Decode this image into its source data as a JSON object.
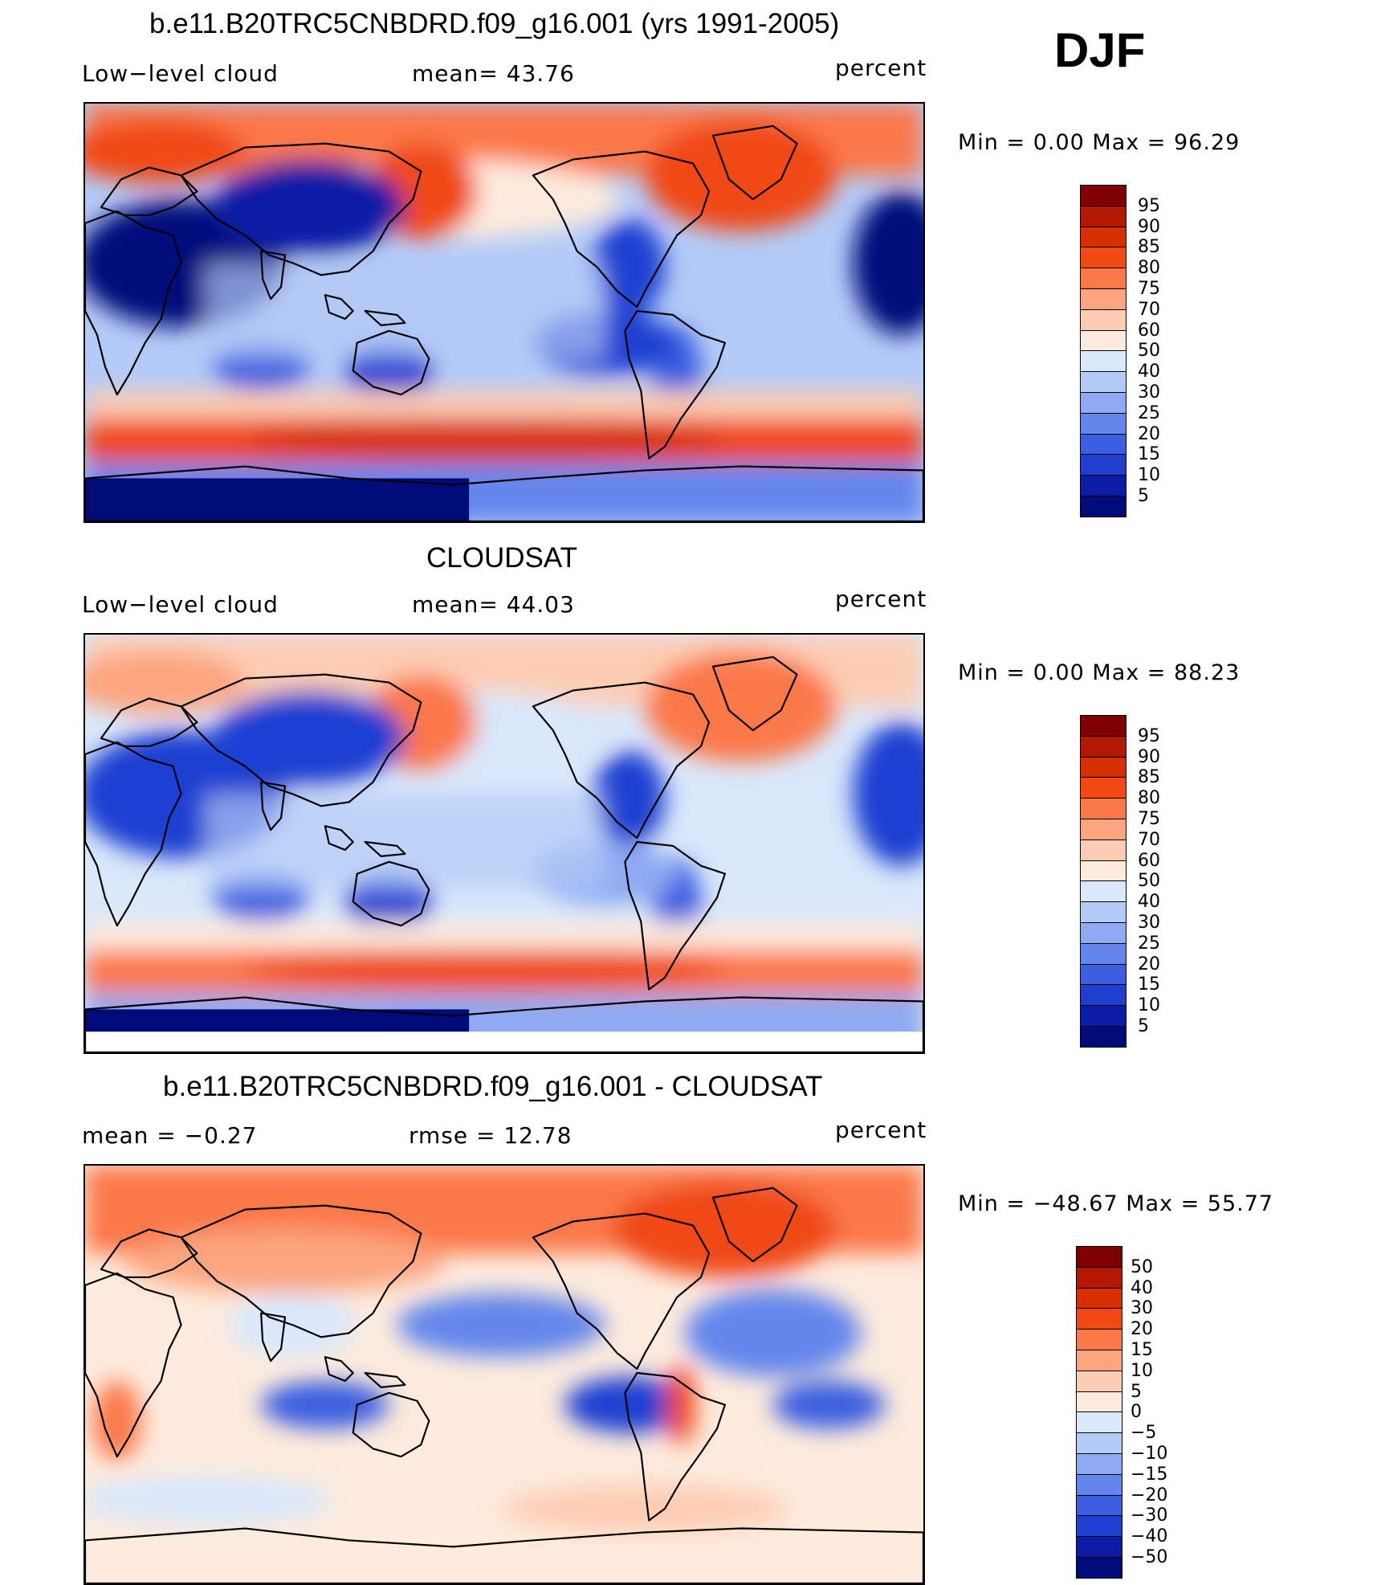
{
  "season": "DJF",
  "panels": [
    {
      "title": "b.e11.B20TRC5CNBDRD.f09_g16.001 (yrs 1991-2005)",
      "left_label": "Low−level  cloud",
      "center_label": "mean=   43.76",
      "right_label": "percent",
      "minmax": "Min  =      0.00  Max  =     96.29",
      "colorbar": [
        "95",
        "90",
        "85",
        "80",
        "75",
        "70",
        "60",
        "50",
        "40",
        "30",
        "25",
        "20",
        "15",
        "10",
        "5"
      ],
      "palette": [
        "#7f0000",
        "#b21800",
        "#d73000",
        "#f04a12",
        "#fb7848",
        "#fca57f",
        "#fdcdb3",
        "#fdebdd",
        "#d9e8fb",
        "#b3cbf7",
        "#8daaf2",
        "#6486ec",
        "#3b5fe0",
        "#1f3fd1",
        "#0b1da6",
        "#000b7a"
      ]
    },
    {
      "title": "CLOUDSAT",
      "left_label": "Low−level  cloud",
      "center_label": "mean=   44.03",
      "right_label": "percent",
      "minmax": "Min  =      0.00  Max  =     88.23",
      "colorbar": [
        "95",
        "90",
        "85",
        "80",
        "75",
        "70",
        "60",
        "50",
        "40",
        "30",
        "25",
        "20",
        "15",
        "10",
        "5"
      ],
      "palette": [
        "#7f0000",
        "#b21800",
        "#d73000",
        "#f04a12",
        "#fb7848",
        "#fca57f",
        "#fdcdb3",
        "#fdebdd",
        "#d9e8fb",
        "#b3cbf7",
        "#8daaf2",
        "#6486ec",
        "#3b5fe0",
        "#1f3fd1",
        "#0b1da6",
        "#000b7a"
      ]
    },
    {
      "title": "b.e11.B20TRC5CNBDRD.f09_g16.001 - CLOUDSAT",
      "left_label": "mean  =    −0.27",
      "center_label": "rmse  =    12.78",
      "right_label": "percent",
      "minmax": "Min  = −48.67  Max  =    55.77",
      "colorbar": [
        "50",
        "40",
        "30",
        "20",
        "15",
        "10",
        "5",
        "0",
        "−5",
        "−10",
        "−15",
        "−20",
        "−30",
        "−40",
        "−50"
      ],
      "palette": [
        "#7f0000",
        "#b21800",
        "#d73000",
        "#f04a12",
        "#fb7848",
        "#fca57f",
        "#fdcdb3",
        "#fdebdd",
        "#d9e8fb",
        "#b3cbf7",
        "#8daaf2",
        "#6486ec",
        "#3b5fe0",
        "#1f3fd1",
        "#0b1da6",
        "#000b7a"
      ]
    }
  ]
}
